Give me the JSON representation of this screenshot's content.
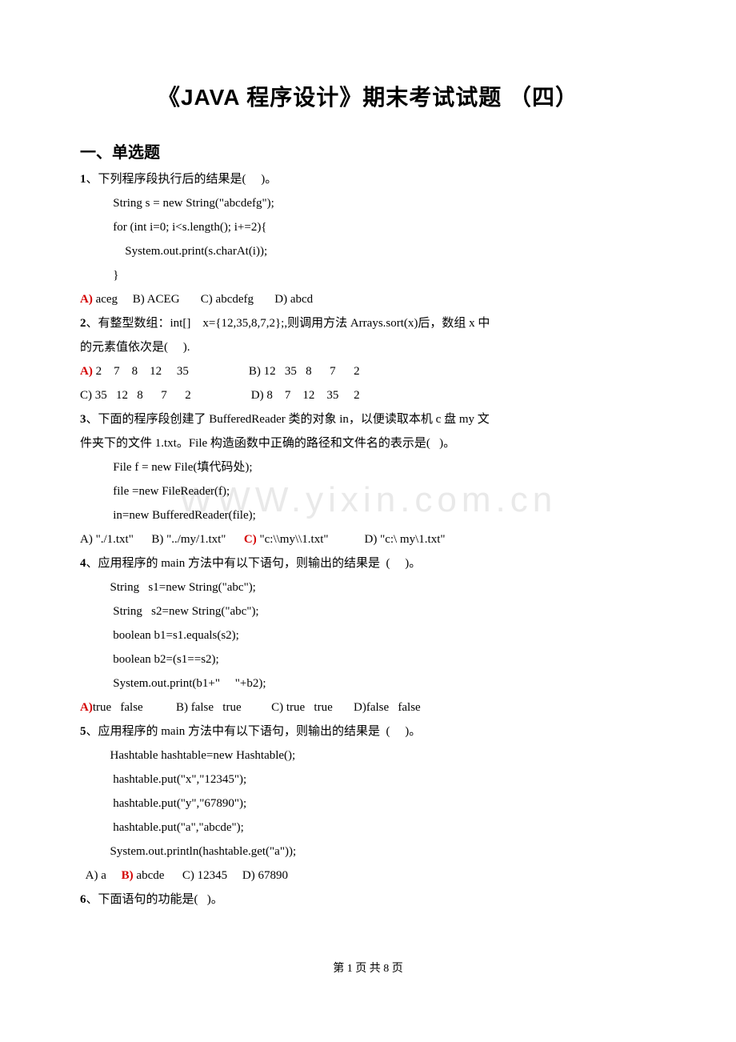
{
  "title": "《JAVA 程序设计》期末考试试题 （四）",
  "section1_head": "一、单选题",
  "watermark": "WWW.yixin.com.cn",
  "footer": "第 1 页 共 8 页",
  "q1": {
    "stem": "、下列程序段执行后的结果是(     )。",
    "num": "1",
    "c1": "           String s = new String(\"abcdefg\");",
    "c2": "           for (int i=0; i<s.length(); i+=2){",
    "c3": "               System.out.print(s.charAt(i));",
    "c4": "           }",
    "optA": "A)",
    "optA2": " aceg     B) ACEG       C) abcdefg       D) abcd"
  },
  "q2": {
    "num": "2",
    "stem": "、有整型数组：int[]    x={12,35,8,7,2};,则调用方法 Arrays.sort(x)后，数组 x 中",
    "stem2": "的元素值依次是(     ).",
    "optA": "A)",
    "optA2": " 2    7    8    12     35                    B) 12   35   8      7      2",
    "optC": "C) 35   12   8      7      2                    D) 8    7    12    35     2"
  },
  "q3": {
    "num": "3",
    "stem": "、下面的程序段创建了 BufferedReader 类的对象 in，以便读取本机 c 盘 my 文",
    "stem2": "件夹下的文件 1.txt。File 构造函数中正确的路径和文件名的表示是(   )。",
    "c1": "           File f = new File(填代码处);",
    "c2": "           file =new FileReader(f);",
    "c3": "           in=new BufferedReader(file);",
    "optsL": "A) \"./1.txt\"      B) \"../my/1.txt\"      ",
    "optC": "C)",
    "optsR": " \"c:\\\\my\\\\1.txt\"            D) \"c:\\ my\\1.txt\""
  },
  "q4": {
    "num": "4",
    "stem": "、应用程序的 main 方法中有以下语句，则输出的结果是  (     )。",
    "c1": "          String   s1=new String(\"abc\");",
    "c2": "           String   s2=new String(\"abc\");",
    "c3": "           boolean b1=s1.equals(s2);",
    "c4": "           boolean b2=(s1==s2);",
    "c5": "           System.out.print(b1+\"     \"+b2);",
    "optA": "A)",
    "optA2": "true   false           B) false   true          C) true   true       D)false   false"
  },
  "q5": {
    "num": "5",
    "stem": "、应用程序的 main 方法中有以下语句，则输出的结果是  (     )。",
    "c1": "          Hashtable hashtable=new Hashtable();",
    "c2": "           hashtable.put(\"x\",\"12345\");",
    "c3": "           hashtable.put(\"y\",\"67890\");",
    "c4": "           hashtable.put(\"a\",\"abcde\");",
    "c5": "          System.out.println(hashtable.get(\"a\"));",
    "optsL": "  A) a     ",
    "optB": "B)",
    "optsR": " abcde      C) 12345     D) 67890"
  },
  "q6": {
    "num": "6",
    "stem": "、下面语句的功能是(   )。"
  }
}
